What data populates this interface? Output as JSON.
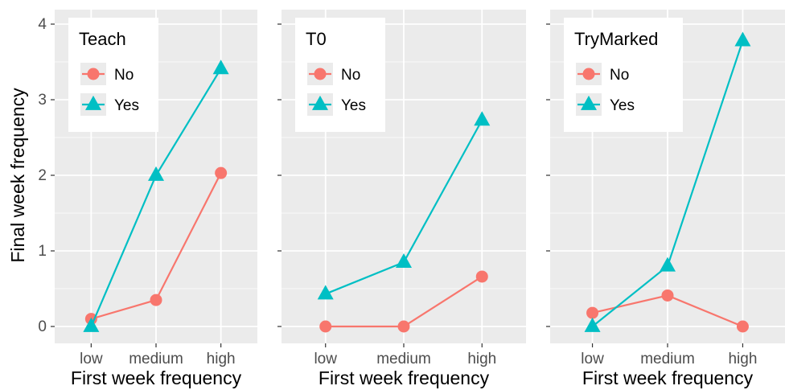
{
  "chart_data": {
    "type": "line",
    "facet_layout": "1x3",
    "ylabel": "Final week frequency",
    "xlabel": "First week frequency",
    "categories": [
      "low",
      "medium",
      "high"
    ],
    "ylim": [
      -0.2,
      4.2
    ],
    "yticks": [
      0,
      1,
      2,
      3,
      4
    ],
    "grid": true,
    "legend_position": "top-left inside each panel",
    "colors": {
      "No": "#F8766D",
      "Yes": "#00BFC4",
      "panel_bg": "#EBEBEB",
      "grid": "#FFFFFF"
    },
    "markers": {
      "No": "circle",
      "Yes": "triangle"
    },
    "panels": [
      {
        "legend_title": "Teach",
        "series": [
          {
            "name": "No",
            "values": [
              0.1,
              0.35,
              2.03
            ]
          },
          {
            "name": "Yes",
            "values": [
              0.0,
              2.0,
              3.41
            ]
          }
        ]
      },
      {
        "legend_title": "T0",
        "series": [
          {
            "name": "No",
            "values": [
              0.0,
              0.0,
              0.66
            ]
          },
          {
            "name": "Yes",
            "values": [
              0.43,
              0.85,
              2.73
            ]
          }
        ]
      },
      {
        "legend_title": "TryMarked",
        "series": [
          {
            "name": "No",
            "values": [
              0.18,
              0.41,
              0.0
            ]
          },
          {
            "name": "Yes",
            "values": [
              0.0,
              0.8,
              3.78
            ]
          }
        ]
      }
    ]
  }
}
